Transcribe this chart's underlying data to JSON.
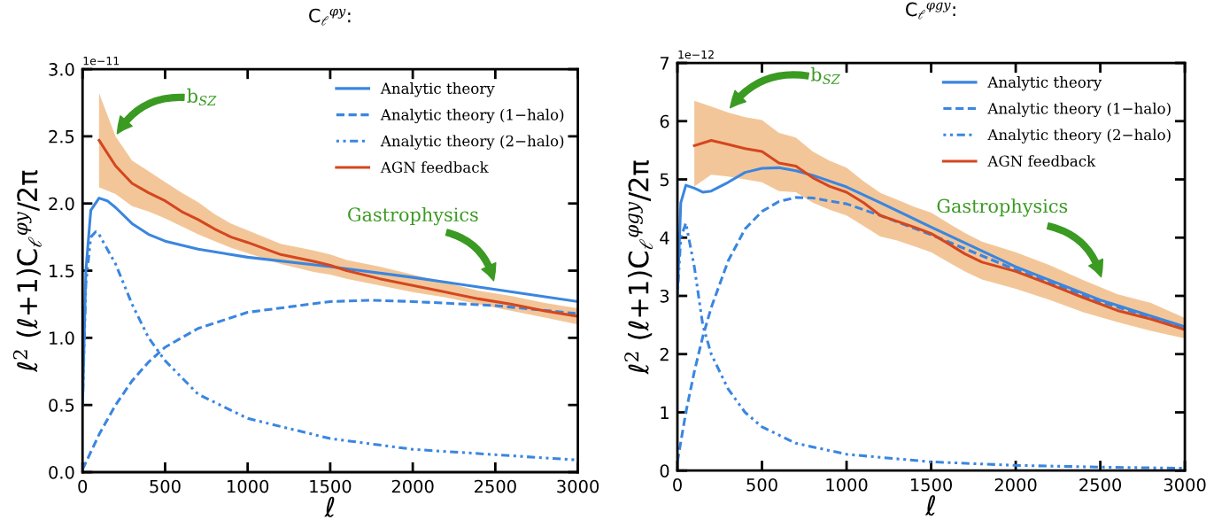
{
  "chart_data": [
    {
      "type": "line",
      "title": "C$_{ℓ}$$^{φy}$:",
      "xlabel": "ℓ",
      "ylabel": "ℓ$^{2}$ (ℓ+1)C$_{ℓ}$$^{φy}$/2π",
      "xlim": [
        0,
        3000
      ],
      "ylim": [
        0,
        3.0
      ],
      "xticks": [
        0,
        500,
        1000,
        1500,
        2000,
        2500,
        3000
      ],
      "yticks": [
        {
          "value": 0,
          "label": "0.0"
        },
        {
          "value": 0.5,
          "label": "0.5"
        },
        {
          "value": 1,
          "label": "1.0"
        },
        {
          "value": 1.5,
          "label": "1.5"
        },
        {
          "value": 2,
          "label": "2.0"
        },
        {
          "value": 2.5,
          "label": "2.5"
        },
        {
          "value": 3,
          "label": "3.0"
        }
      ],
      "grid": false,
      "legend": "top right",
      "series": [
        {
          "name": "Analytic theory",
          "color": "#3a86e0",
          "line_style": "solid",
          "x": [
            0,
            20,
            50,
            100,
            150,
            200,
            300,
            400,
            500,
            700,
            1000,
            1500,
            2000,
            2500,
            3000
          ],
          "values": [
            0.5,
            1.5,
            1.95,
            2.04,
            2.02,
            1.97,
            1.85,
            1.77,
            1.72,
            1.66,
            1.6,
            1.53,
            1.45,
            1.36,
            1.27
          ]
        },
        {
          "name": "Analytic theory (1−halo)",
          "color": "#3a86e0",
          "line_style": "dashed",
          "x": [
            0,
            50,
            100,
            200,
            300,
            400,
            500,
            700,
            1000,
            1500,
            1750,
            2000,
            2500,
            3000
          ],
          "values": [
            0.02,
            0.15,
            0.28,
            0.5,
            0.68,
            0.82,
            0.93,
            1.07,
            1.19,
            1.27,
            1.28,
            1.27,
            1.24,
            1.18
          ]
        },
        {
          "name": "Analytic theory (2−halo)",
          "color": "#3a86e0",
          "line_style": "dotted",
          "x": [
            0,
            20,
            50,
            80,
            100,
            200,
            300,
            400,
            500,
            700,
            1000,
            1500,
            2000,
            2500,
            3000
          ],
          "values": [
            0.5,
            1.4,
            1.75,
            1.79,
            1.77,
            1.55,
            1.25,
            1.0,
            0.83,
            0.58,
            0.4,
            0.25,
            0.17,
            0.13,
            0.09
          ]
        },
        {
          "name": "AGN feedback",
          "color": "#d4471f",
          "line_style": "solid",
          "x": [
            100,
            200,
            300,
            400,
            500,
            600,
            700,
            800,
            900,
            1000,
            1200,
            1400,
            1500,
            1600,
            1800,
            2000,
            2200,
            2400,
            2600,
            2800,
            3000
          ],
          "values": [
            2.47,
            2.28,
            2.15,
            2.08,
            2.02,
            1.94,
            1.88,
            1.81,
            1.75,
            1.71,
            1.62,
            1.57,
            1.54,
            1.5,
            1.44,
            1.39,
            1.34,
            1.29,
            1.25,
            1.2,
            1.16
          ],
          "lower": [
            2.12,
            2.07,
            1.98,
            1.94,
            1.89,
            1.83,
            1.77,
            1.72,
            1.67,
            1.63,
            1.55,
            1.49,
            1.47,
            1.44,
            1.39,
            1.34,
            1.3,
            1.25,
            1.2,
            1.15,
            1.1
          ],
          "upper": [
            2.82,
            2.5,
            2.32,
            2.24,
            2.16,
            2.08,
            2.01,
            1.92,
            1.85,
            1.8,
            1.7,
            1.65,
            1.62,
            1.58,
            1.53,
            1.47,
            1.41,
            1.35,
            1.31,
            1.26,
            1.22
          ]
        }
      ],
      "annotations": [
        "1e−11",
        "b$_{SZ}$",
        "Gastrophysics"
      ]
    },
    {
      "type": "line",
      "title": "C$_{ℓ}$$^{φgy}$:",
      "xlabel": "ℓ",
      "ylabel": "ℓ$^{2}$ (ℓ+1)C$_{ℓ}$$^{φgy}$/2π",
      "xlim": [
        0,
        3000
      ],
      "ylim": [
        0,
        7
      ],
      "xticks": [
        0,
        500,
        1000,
        1500,
        2000,
        2500,
        3000
      ],
      "yticks": [
        0,
        1,
        2,
        3,
        4,
        5,
        6,
        7
      ],
      "grid": false,
      "legend": "top right",
      "series": [
        {
          "name": "Analytic theory",
          "color": "#3a86e0",
          "line_style": "solid",
          "x": [
            0,
            20,
            50,
            100,
            150,
            200,
            300,
            400,
            500,
            600,
            700,
            800,
            1000,
            1200,
            1500,
            2000,
            2500,
            3000
          ],
          "values": [
            3.0,
            4.6,
            4.9,
            4.85,
            4.78,
            4.8,
            4.95,
            5.12,
            5.19,
            5.2,
            5.15,
            5.07,
            4.87,
            4.6,
            4.18,
            3.5,
            2.93,
            2.47
          ]
        },
        {
          "name": "Analytic theory (1−halo)",
          "color": "#3a86e0",
          "line_style": "dashed",
          "x": [
            0,
            50,
            100,
            150,
            200,
            300,
            400,
            500,
            600,
            700,
            800,
            1000,
            1200,
            1500,
            2000,
            2500,
            3000
          ],
          "values": [
            0.15,
            1.0,
            1.7,
            2.3,
            2.8,
            3.6,
            4.15,
            4.45,
            4.62,
            4.69,
            4.68,
            4.58,
            4.38,
            4.05,
            3.45,
            2.9,
            2.45
          ]
        },
        {
          "name": "Analytic theory (2−halo)",
          "color": "#3a86e0",
          "line_style": "dotted",
          "x": [
            0,
            20,
            50,
            100,
            150,
            200,
            300,
            400,
            500,
            700,
            1000,
            1500,
            2000,
            2500,
            3000
          ],
          "values": [
            3.0,
            4.0,
            4.25,
            3.5,
            2.5,
            2.0,
            1.4,
            1.0,
            0.75,
            0.47,
            0.28,
            0.15,
            0.09,
            0.06,
            0.04
          ]
        },
        {
          "name": "AGN feedback",
          "color": "#d4471f",
          "line_style": "solid",
          "x": [
            100,
            200,
            300,
            400,
            500,
            600,
            700,
            800,
            900,
            1000,
            1100,
            1200,
            1300,
            1400,
            1500,
            1600,
            1700,
            1800,
            2000,
            2200,
            2400,
            2600,
            2800,
            3000
          ],
          "values": [
            5.58,
            5.67,
            5.6,
            5.53,
            5.48,
            5.28,
            5.23,
            5.03,
            4.88,
            4.78,
            4.6,
            4.38,
            4.28,
            4.18,
            4.07,
            3.9,
            3.72,
            3.58,
            3.42,
            3.2,
            2.97,
            2.75,
            2.6,
            2.42
          ],
          "lower": [
            4.88,
            5.08,
            5.05,
            5.0,
            4.95,
            4.8,
            4.78,
            4.6,
            4.48,
            4.38,
            4.2,
            4.02,
            3.95,
            3.85,
            3.75,
            3.58,
            3.42,
            3.28,
            3.12,
            2.93,
            2.72,
            2.55,
            2.4,
            2.27
          ],
          "upper": [
            6.35,
            6.25,
            6.15,
            6.07,
            6.02,
            5.8,
            5.72,
            5.48,
            5.32,
            5.2,
            4.97,
            4.77,
            4.65,
            4.53,
            4.43,
            4.25,
            4.08,
            3.93,
            3.75,
            3.53,
            3.27,
            3.03,
            2.88,
            2.62
          ]
        }
      ],
      "annotations": [
        "1e−12",
        "b$_{SZ}$",
        "Gastrophysics"
      ]
    }
  ]
}
